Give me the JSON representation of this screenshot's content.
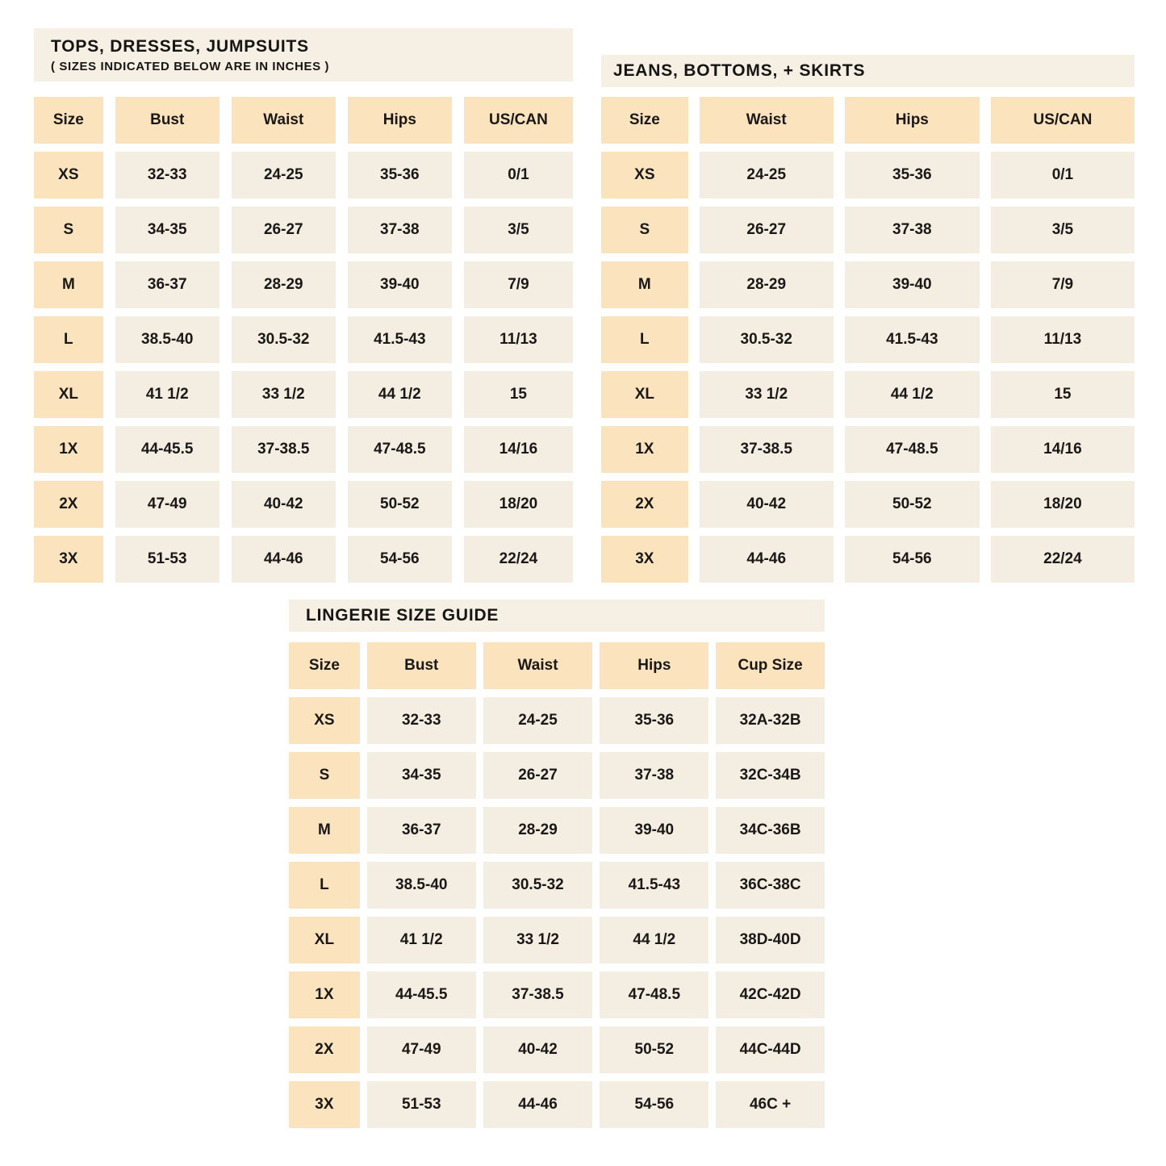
{
  "colors": {
    "page_background": "#ffffff",
    "title_band": "#f6f0e4",
    "header_cell": "#fbe3be",
    "size_cell": "#fbe3be",
    "data_cell": "#f4ede2",
    "text": "#1a1816"
  },
  "tables": [
    {
      "id": "tops-dresses-jumpsuits",
      "title": "TOPS, DRESSES, JUMPSUITS",
      "subtitle": "( SIZES INDICATED BELOW ARE IN INCHES )",
      "columns": [
        "Size",
        "Bust",
        "Waist",
        "Hips",
        "US/CAN"
      ],
      "rows": [
        [
          "XS",
          "32-33",
          "24-25",
          "35-36",
          "0/1"
        ],
        [
          "S",
          "34-35",
          "26-27",
          "37-38",
          "3/5"
        ],
        [
          "M",
          "36-37",
          "28-29",
          "39-40",
          "7/9"
        ],
        [
          "L",
          "38.5-40",
          "30.5-32",
          "41.5-43",
          "11/13"
        ],
        [
          "XL",
          "41 1/2",
          "33 1/2",
          "44 1/2",
          "15"
        ],
        [
          "1X",
          "44-45.5",
          "37-38.5",
          "47-48.5",
          "14/16"
        ],
        [
          "2X",
          "47-49",
          "40-42",
          "50-52",
          "18/20"
        ],
        [
          "3X",
          "51-53",
          "44-46",
          "54-56",
          "22/24"
        ]
      ]
    },
    {
      "id": "jeans-bottoms-skirts",
      "title": "JEANS, BOTTOMS, + SKIRTS",
      "subtitle": "",
      "columns": [
        "Size",
        "Waist",
        "Hips",
        "US/CAN"
      ],
      "rows": [
        [
          "XS",
          "24-25",
          "35-36",
          "0/1"
        ],
        [
          "S",
          "26-27",
          "37-38",
          "3/5"
        ],
        [
          "M",
          "28-29",
          "39-40",
          "7/9"
        ],
        [
          "L",
          "30.5-32",
          "41.5-43",
          "11/13"
        ],
        [
          "XL",
          "33 1/2",
          "44 1/2",
          "15"
        ],
        [
          "1X",
          "37-38.5",
          "47-48.5",
          "14/16"
        ],
        [
          "2X",
          "40-42",
          "50-52",
          "18/20"
        ],
        [
          "3X",
          "44-46",
          "54-56",
          "22/24"
        ]
      ]
    },
    {
      "id": "lingerie-size-guide",
      "title": "LINGERIE SIZE GUIDE",
      "subtitle": "",
      "columns": [
        "Size",
        "Bust",
        "Waist",
        "Hips",
        "Cup Size"
      ],
      "rows": [
        [
          "XS",
          "32-33",
          "24-25",
          "35-36",
          "32A-32B"
        ],
        [
          "S",
          "34-35",
          "26-27",
          "37-38",
          "32C-34B"
        ],
        [
          "M",
          "36-37",
          "28-29",
          "39-40",
          "34C-36B"
        ],
        [
          "L",
          "38.5-40",
          "30.5-32",
          "41.5-43",
          "36C-38C"
        ],
        [
          "XL",
          "41 1/2",
          "33 1/2",
          "44 1/2",
          "38D-40D"
        ],
        [
          "1X",
          "44-45.5",
          "37-38.5",
          "47-48.5",
          "42C-42D"
        ],
        [
          "2X",
          "47-49",
          "40-42",
          "50-52",
          "44C-44D"
        ],
        [
          "3X",
          "51-53",
          "44-46",
          "54-56",
          "46C +"
        ]
      ]
    }
  ]
}
